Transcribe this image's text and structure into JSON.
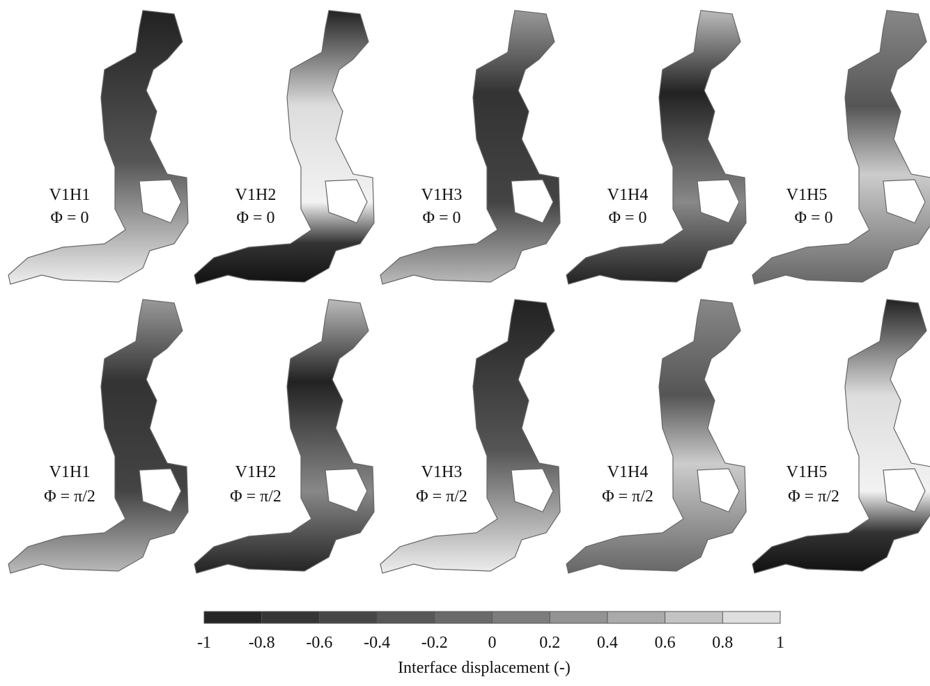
{
  "panels": [
    {
      "name": "V1H1",
      "phase": "Φ = 0"
    },
    {
      "name": "V1H2",
      "phase": "Φ = 0"
    },
    {
      "name": "V1H3",
      "phase": "Φ = 0"
    },
    {
      "name": "V1H4",
      "phase": "Φ = 0"
    },
    {
      "name": "V1H5",
      "phase": "Φ = 0"
    },
    {
      "name": "V1H1",
      "phase": "Φ = π/2"
    },
    {
      "name": "V1H2",
      "phase": "Φ = π/2"
    },
    {
      "name": "V1H3",
      "phase": "Φ = π/2"
    },
    {
      "name": "V1H4",
      "phase": "Φ = π/2"
    },
    {
      "name": "V1H5",
      "phase": "Φ = π/2"
    }
  ],
  "colorbar": {
    "lim": [
      -1,
      1
    ],
    "ticks": [
      -1,
      -0.8,
      -0.6,
      -0.4,
      -0.2,
      0,
      0.2,
      0.4,
      0.6,
      0.8,
      1
    ],
    "colors": [
      "#262626",
      "#363636",
      "#474747",
      "#585858",
      "#6a6a6a",
      "#7d7d7d",
      "#939393",
      "#aaaaaa",
      "#c3c3c3",
      "#dedede"
    ],
    "label": "Interface displacement (-)"
  }
}
